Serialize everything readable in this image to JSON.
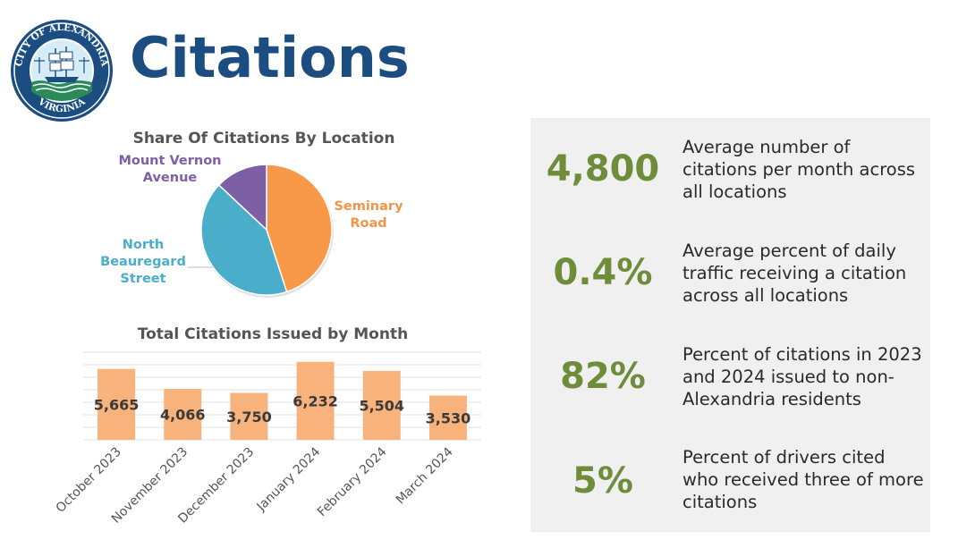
{
  "title": "Citations",
  "seal": {
    "top_text": "CITY OF ALEXANDRIA",
    "bottom_text": "VIRGINIA"
  },
  "colors": {
    "title": "#1b4d80",
    "seminary": "#f8994a",
    "beauregard": "#4aaecb",
    "mount_vernon": "#7d5fa6",
    "bar": "#f8b27c",
    "stat_value": "#6e8d3a",
    "panel_bg": "#f0f0f0"
  },
  "chart_data": [
    {
      "type": "pie",
      "title": "Share Of Citations By Location",
      "labels": [
        "Seminary Road",
        "North Beauregard Street",
        "Mount Vernon Avenue"
      ],
      "display_labels": [
        "Seminary\nRoad",
        "North\nBeauregard\nStreet",
        "Mount Vernon\nAvenue"
      ],
      "values": [
        45,
        42,
        13
      ],
      "legend": "none"
    },
    {
      "type": "bar",
      "title": "Total Citations Issued by Month",
      "categories": [
        "October 2023",
        "November 2023",
        "December 2023",
        "January 2024",
        "February 2024",
        "March 2024"
      ],
      "values": [
        5665,
        4066,
        3750,
        6232,
        5504,
        3530
      ],
      "value_labels": [
        "5,665",
        "4,066",
        "3,750",
        "6,232",
        "5,504",
        "3,530"
      ],
      "ylim": [
        0,
        7000
      ],
      "grid": true,
      "xlabel": "",
      "ylabel": ""
    }
  ],
  "stats": [
    {
      "value": "4,800",
      "description": "Average number of citations per month across all locations"
    },
    {
      "value": "0.4%",
      "description": "Average percent of daily traffic receiving a citation across all locations"
    },
    {
      "value": "82%",
      "description": "Percent of citations in 2023 and 2024 issued to non-Alexandria residents"
    },
    {
      "value": "5%",
      "description": "Percent of drivers cited who received three of more citations"
    }
  ]
}
